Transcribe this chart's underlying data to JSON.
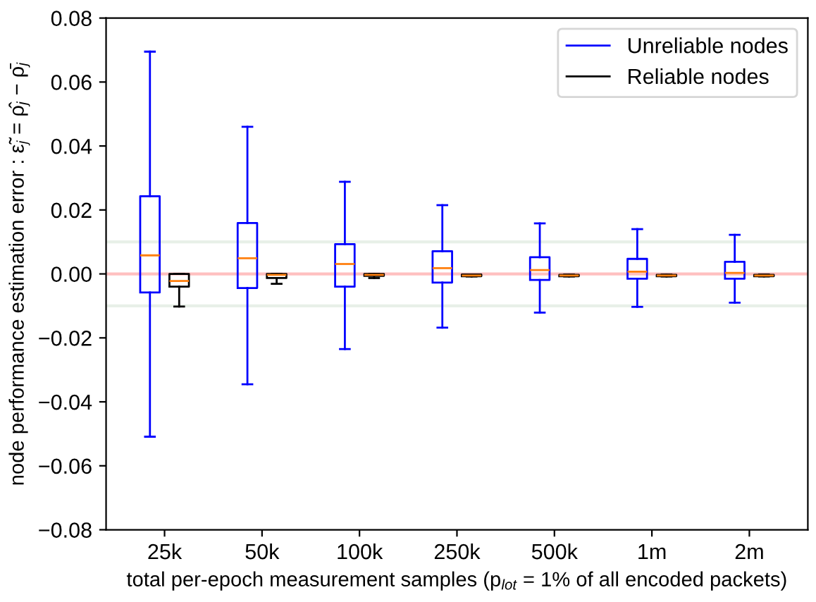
{
  "chart_data": {
    "type": "box",
    "xlabel": "total per-epoch measurement samples (p$_{lot}$ = 1% of all encoded packets)",
    "ylabel": "node performance estimation error : ε̃$_{j}$ = ρ̂$_{j}$ − ρ̄$_{j}$",
    "categories": [
      "25k",
      "50k",
      "100k",
      "250k",
      "500k",
      "1m",
      "2m"
    ],
    "ylim": [
      -0.08,
      0.08
    ],
    "yticks": [
      {
        "value": -0.08,
        "label": "−0.08"
      },
      {
        "value": -0.06,
        "label": "−0.06"
      },
      {
        "value": -0.04,
        "label": "−0.04"
      },
      {
        "value": -0.02,
        "label": "−0.02"
      },
      {
        "value": 0,
        "label": "0.00"
      },
      {
        "value": 0.02,
        "label": "0.02"
      },
      {
        "value": 0.04,
        "label": "0.04"
      },
      {
        "value": 0.06,
        "label": "0.06"
      },
      {
        "value": 0.08,
        "label": "0.08"
      }
    ],
    "legend": "top right",
    "grid": false,
    "ref_lines": [
      {
        "axis": "y",
        "value": 0,
        "color": "#ffc0c0"
      },
      {
        "axis": "y",
        "value": 0.01,
        "color": "#e8f0e8"
      },
      {
        "axis": "y",
        "value": -0.01,
        "color": "#e8f0e8"
      }
    ],
    "series": [
      {
        "name": "Unreliable nodes",
        "color": "#0000ff",
        "boxes": [
          {
            "low": -0.0509,
            "q1": -0.0058,
            "median": 0.0058,
            "q3": 0.0243,
            "high": 0.0695
          },
          {
            "low": -0.0345,
            "q1": -0.0044,
            "median": 0.0049,
            "q3": 0.0159,
            "high": 0.046
          },
          {
            "low": -0.0235,
            "q1": -0.004,
            "median": 0.0031,
            "q3": 0.0093,
            "high": 0.0288
          },
          {
            "low": -0.0168,
            "q1": -0.0027,
            "median": 0.0018,
            "q3": 0.0071,
            "high": 0.0215
          },
          {
            "low": -0.0121,
            "q1": -0.0019,
            "median": 0.0012,
            "q3": 0.0052,
            "high": 0.0158
          },
          {
            "low": -0.0103,
            "q1": -0.0015,
            "median": 0.0007,
            "q3": 0.0047,
            "high": 0.014
          },
          {
            "low": -0.009,
            "q1": -0.0015,
            "median": 0.0003,
            "q3": 0.0038,
            "high": 0.0122
          }
        ]
      },
      {
        "name": "Reliable nodes",
        "color": "#000000",
        "boxes": [
          {
            "low": -0.0102,
            "q1": -0.004,
            "median": -0.0022,
            "q3": 0.0,
            "high": 0.0
          },
          {
            "low": -0.0031,
            "q1": -0.0013,
            "median": -0.0003,
            "q3": 0.0,
            "high": 0.0
          },
          {
            "low": -0.0013,
            "q1": -0.0006,
            "median": -0.0003,
            "q3": 0.0,
            "high": 0.0
          },
          {
            "low": -0.0008,
            "q1": -0.0007,
            "median": -0.0005,
            "q3": -0.0002,
            "high": -0.0002
          },
          {
            "low": -0.0008,
            "q1": -0.0007,
            "median": -0.0005,
            "q3": -0.0003,
            "high": -0.0002
          },
          {
            "low": -0.0008,
            "q1": -0.0007,
            "median": -0.0005,
            "q3": -0.0003,
            "high": -0.0002
          },
          {
            "low": -0.0008,
            "q1": -0.0007,
            "median": -0.0005,
            "q3": -0.0003,
            "high": -0.0002
          }
        ]
      }
    ]
  }
}
